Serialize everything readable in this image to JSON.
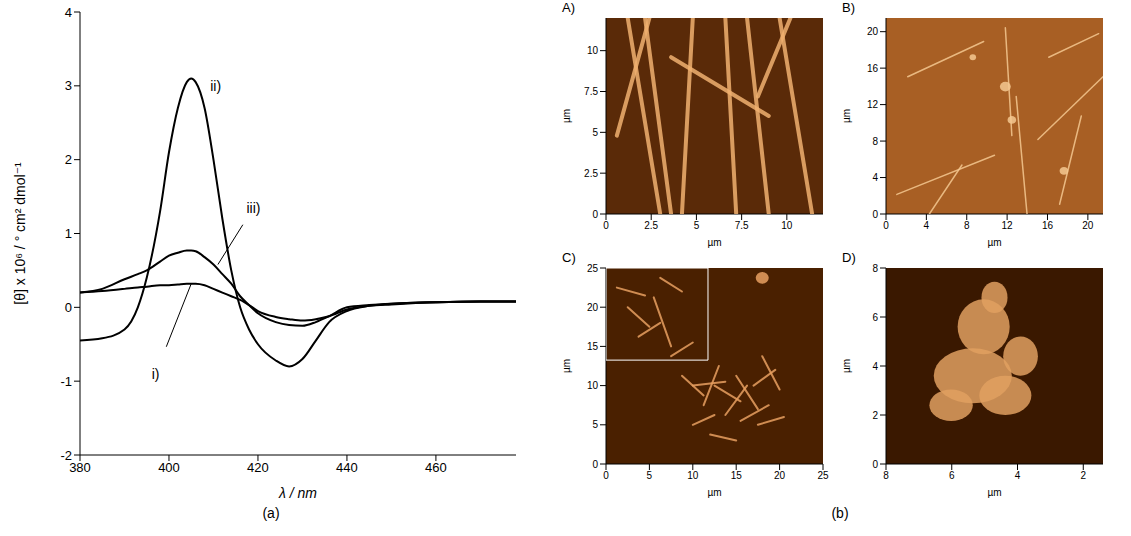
{
  "chart_data": [
    {
      "type": "line",
      "caption": "(a)",
      "x_label": "λ / nm",
      "y_label": "[θ] x 10⁶ / ° cm² dmol⁻¹",
      "xlim": [
        380,
        478
      ],
      "xticks": [
        380,
        400,
        420,
        440,
        460
      ],
      "ylim": [
        -2,
        4
      ],
      "yticks": [
        -2,
        -1,
        0,
        1,
        2,
        3,
        4
      ],
      "grid": false,
      "x": [
        380,
        385,
        390,
        393,
        395,
        398,
        400,
        402,
        404,
        405,
        406,
        408,
        410,
        412,
        414,
        416,
        418,
        420,
        424,
        427,
        430,
        433,
        436,
        440,
        445,
        450,
        460,
        470,
        478
      ],
      "series": [
        {
          "name": "i)",
          "color": "#000000",
          "values": [
            0.2,
            0.22,
            0.25,
            0.27,
            0.28,
            0.3,
            0.3,
            0.31,
            0.32,
            0.32,
            0.32,
            0.3,
            0.25,
            0.2,
            0.15,
            0.1,
            0.03,
            -0.05,
            -0.13,
            -0.16,
            -0.18,
            -0.16,
            -0.12,
            -0.03,
            0.02,
            0.04,
            0.07,
            0.08,
            0.08
          ]
        },
        {
          "name": "ii)",
          "color": "#000000",
          "values": [
            -0.45,
            -0.42,
            -0.3,
            0,
            0.4,
            1.3,
            2.1,
            2.7,
            3.05,
            3.1,
            3.05,
            2.7,
            2.0,
            1.2,
            0.5,
            0.0,
            -0.3,
            -0.5,
            -0.72,
            -0.8,
            -0.7,
            -0.45,
            -0.2,
            -0.05,
            0.02,
            0.05,
            0.07,
            0.08,
            0.08
          ]
        },
        {
          "name": "iii)",
          "color": "#000000",
          "values": [
            0.2,
            0.25,
            0.38,
            0.45,
            0.5,
            0.62,
            0.7,
            0.74,
            0.77,
            0.77,
            0.76,
            0.68,
            0.58,
            0.45,
            0.32,
            0.15,
            0.03,
            -0.08,
            -0.2,
            -0.24,
            -0.25,
            -0.2,
            -0.12,
            0.0,
            0.03,
            0.05,
            0.07,
            0.08,
            0.08
          ]
        }
      ],
      "annotations": [
        {
          "text": "ii)",
          "x": 410.5,
          "y": 3.0
        },
        {
          "text": "iii)",
          "x": 419,
          "y": 1.35,
          "point_x": 411,
          "point_y": 0.58
        },
        {
          "text": "i)",
          "x": 397,
          "y": -0.9,
          "point_x": 405,
          "point_y": 0.32
        }
      ]
    },
    {
      "type": "image",
      "caption": "(b)",
      "title": "A)",
      "x_label": "µm",
      "y_label": "µm",
      "xlim": [
        0,
        12
      ],
      "xticks": [
        0,
        2.5,
        5,
        7.5,
        10
      ],
      "ylim": [
        0,
        12
      ],
      "yticks": [
        0,
        2.5,
        5,
        7.5,
        10
      ],
      "color": "#5a2a08"
    },
    {
      "type": "image",
      "title": "B)",
      "x_label": "µm",
      "y_label": "µm",
      "xlim": [
        0,
        21.5
      ],
      "xticks": [
        0,
        4,
        8,
        12,
        16,
        20
      ],
      "ylim": [
        0,
        21.5
      ],
      "yticks": [
        0,
        4,
        8,
        12,
        16,
        20
      ],
      "color": "#a85f24"
    },
    {
      "type": "image",
      "title": "C)",
      "x_label": "µm",
      "y_label": "µm",
      "xlim": [
        0,
        25
      ],
      "xticks": [
        0,
        5,
        10,
        15,
        20,
        25
      ],
      "ylim": [
        0,
        25
      ],
      "yticks": [
        0,
        5,
        10,
        15,
        20,
        25
      ],
      "color": "#4a2000"
    },
    {
      "type": "image",
      "title": "D)",
      "x_label": "µm",
      "y_label": "µm",
      "xlim": [
        8,
        1.4
      ],
      "xticks": [
        8,
        6,
        4,
        2
      ],
      "ylim": [
        0,
        8
      ],
      "yticks": [
        0,
        2,
        4,
        6,
        8
      ],
      "color": "#3a1800"
    }
  ]
}
